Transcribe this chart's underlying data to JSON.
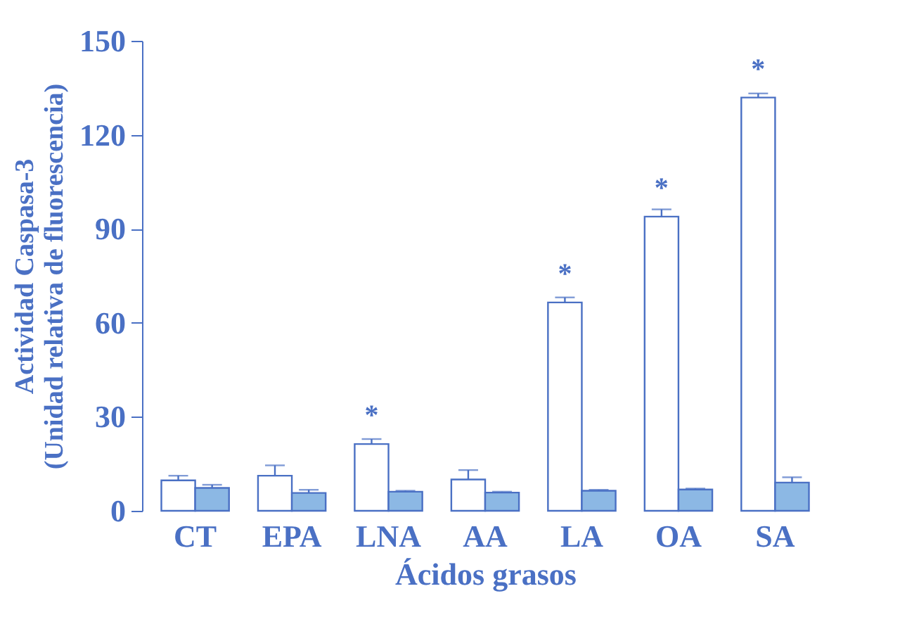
{
  "chart_data": {
    "type": "bar",
    "xlabel": "Ácidos grasos",
    "ylabel": "Actividad Caspasa-3\n(Unidad relativa de fluorescencia)",
    "categories": [
      "CT",
      "EPA",
      "LNA",
      "AA",
      "LA",
      "OA",
      "SA"
    ],
    "series": [
      {
        "color": "#ffffff",
        "values": [
          9.7,
          11.2,
          21.3,
          10,
          66.5,
          93.9,
          131.9
        ],
        "errors": [
          [
            9.7,
            11.2
          ],
          [
            11.2,
            14.5
          ],
          [
            21.3,
            22.9
          ],
          [
            10,
            13
          ],
          [
            66.5,
            68.1
          ],
          [
            93.9,
            96.2
          ],
          [
            131.9,
            133.2
          ]
        ]
      },
      {
        "color": "#8cb8e4",
        "values": [
          7.3,
          5.7,
          6.1,
          5.8,
          6.4,
          6.8,
          9
        ],
        "errors": [
          [
            7.3,
            8.3
          ],
          [
            5.7,
            6.7
          ],
          [
            6.1,
            6.4
          ],
          [
            5.8,
            6.1
          ],
          [
            6.4,
            6.7
          ],
          [
            6.8,
            7.1
          ],
          [
            9,
            10.7
          ]
        ]
      }
    ],
    "ylim": [
      0,
      150
    ],
    "yticks": [
      0,
      30,
      60,
      90,
      120,
      150
    ],
    "grid": false,
    "legend": false,
    "annotations": [
      {
        "text": "*",
        "x": "LNA",
        "y": 21.3
      },
      {
        "text": "*",
        "x": "LA",
        "y": 66.5
      },
      {
        "text": "*",
        "x": "OA",
        "y": 93.9
      },
      {
        "text": "*",
        "x": "SA",
        "y": 131.9
      }
    ]
  }
}
